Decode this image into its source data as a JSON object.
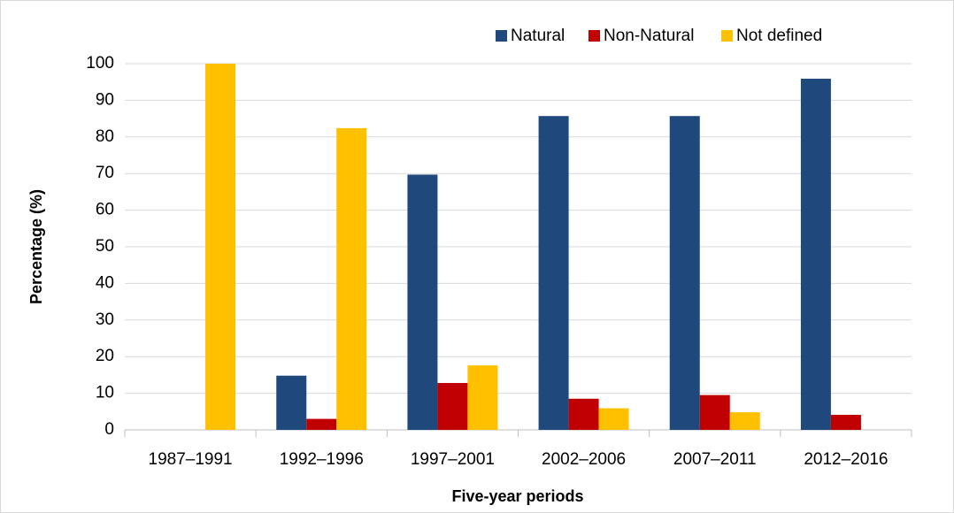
{
  "chart_data": {
    "type": "bar",
    "x_label": "Five-year periods",
    "y_label": "Percentage (%)",
    "categories": [
      "1987–1991",
      "1992–1996",
      "1997–2001",
      "2002–2006",
      "2007–2011",
      "2012–2016"
    ],
    "series": [
      {
        "name": "Natural",
        "color": "#1f497d",
        "values": [
          0,
          14.8,
          69.7,
          85.7,
          85.7,
          95.9
        ]
      },
      {
        "name": "Non-Natural",
        "color": "#c00000",
        "values": [
          0,
          3,
          12.8,
          8.5,
          9.5,
          4.1
        ]
      },
      {
        "name": "Not defined",
        "color": "#ffc000",
        "values": [
          100,
          82.4,
          17.6,
          5.9,
          4.8,
          0
        ]
      }
    ],
    "ylim": [
      0,
      100
    ],
    "yticks": [
      0,
      10,
      20,
      30,
      40,
      50,
      60,
      70,
      80,
      90,
      100
    ],
    "grid": true,
    "legend": "top-right"
  }
}
